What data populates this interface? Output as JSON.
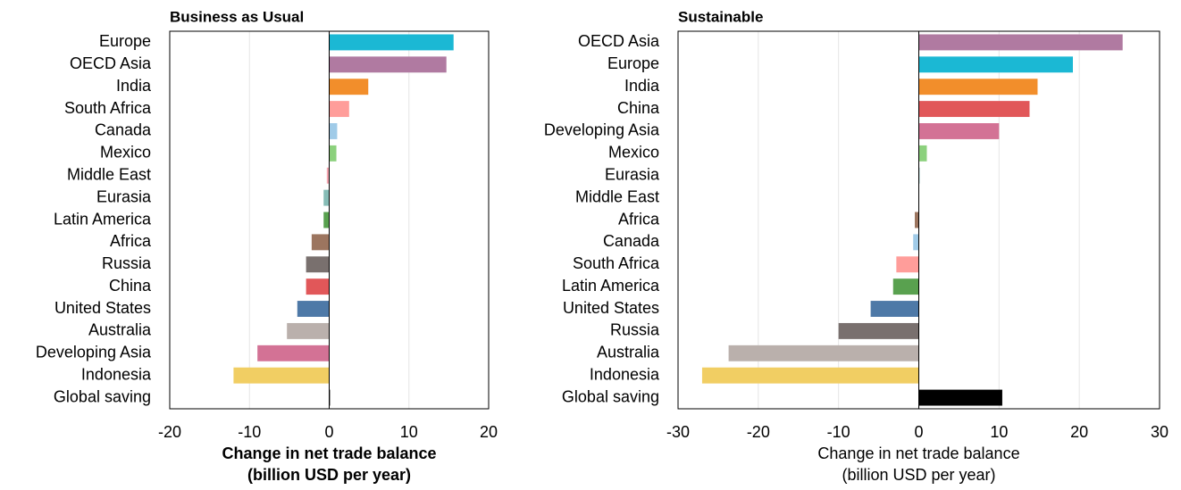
{
  "chart_data": [
    {
      "type": "bar",
      "orientation": "horizontal",
      "title": "Business as Usual",
      "xlabel": [
        "Change in net trade balance",
        "(billion USD per year)"
      ],
      "categories": [
        "Europe",
        "OECD Asia",
        "India",
        "South Africa",
        "Canada",
        "Mexico",
        "Middle East",
        "Eurasia",
        "Latin America",
        "Africa",
        "Russia",
        "China",
        "United States",
        "Australia",
        "Developing Asia",
        "Indonesia",
        "Global saving"
      ],
      "values": [
        15.6,
        14.7,
        4.9,
        2.5,
        1.0,
        0.9,
        -0.3,
        -0.7,
        -0.7,
        -2.2,
        -2.9,
        -2.9,
        -4.0,
        -5.3,
        -9.0,
        -12.0,
        0.1
      ],
      "colors": [
        "#1bb8d4",
        "#b07aa1",
        "#f28e2b",
        "#ff9d9a",
        "#a0cbe8",
        "#8cd17d",
        "#f4a6b0",
        "#86bcb6",
        "#59a14f",
        "#9c755f",
        "#79706e",
        "#e15759",
        "#4e79a7",
        "#bab0ac",
        "#d37295",
        "#f1ce63",
        "#000000"
      ],
      "xlim": [
        -20,
        20
      ],
      "xticks": [
        -20,
        -10,
        0,
        10,
        20
      ],
      "grid": true
    },
    {
      "type": "bar",
      "orientation": "horizontal",
      "title": "Sustainable",
      "xlabel": [
        "Change in net trade balance",
        "(billion USD per year)"
      ],
      "categories": [
        "OECD Asia",
        "Europe",
        "India",
        "China",
        "Developing Asia",
        "Mexico",
        "Eurasia",
        "Middle East",
        "Africa",
        "Canada",
        "South Africa",
        "Latin America",
        "United States",
        "Russia",
        "Australia",
        "Indonesia",
        "Global saving"
      ],
      "values": [
        25.4,
        19.2,
        14.8,
        13.8,
        10.0,
        1.0,
        0.1,
        0.0,
        -0.5,
        -0.7,
        -2.8,
        -3.2,
        -6.0,
        -10.0,
        -23.7,
        -27.0,
        10.4
      ],
      "colors": [
        "#b07aa1",
        "#1bb8d4",
        "#f28e2b",
        "#e15759",
        "#d37295",
        "#8cd17d",
        "#86bcb6",
        "#f4a6b0",
        "#9c755f",
        "#a0cbe8",
        "#ff9d9a",
        "#59a14f",
        "#4e79a7",
        "#79706e",
        "#bab0ac",
        "#f1ce63",
        "#000000"
      ],
      "xlim": [
        -30,
        30
      ],
      "xticks": [
        -30,
        -20,
        -10,
        0,
        10,
        20,
        30
      ],
      "grid": true
    }
  ]
}
